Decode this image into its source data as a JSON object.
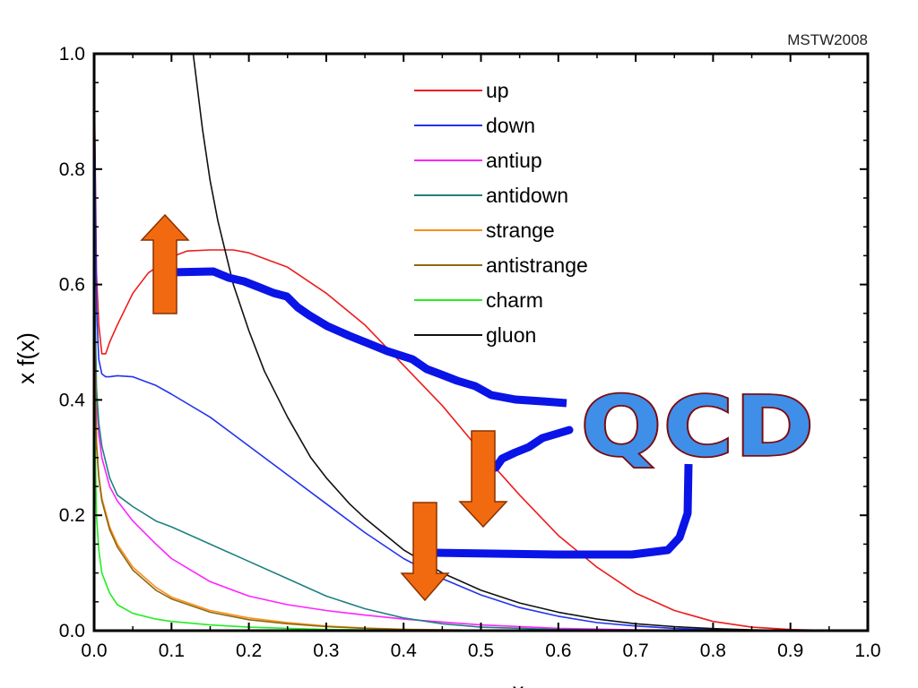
{
  "source_label": "MSTW2008",
  "overlay_text": "QCD",
  "colors": {
    "axis": "#000000",
    "annotation_line": "#0a14e6",
    "arrow_fill": "#f26a10",
    "arrow_stroke": "#8a3000",
    "qcd_fill": "#3f8fe8",
    "qcd_stroke": "#7a0c12"
  },
  "chart_data": {
    "type": "line",
    "xlabel": "x",
    "ylabel": "x f(x)",
    "xlim": [
      0.0,
      1.0
    ],
    "ylim": [
      0.0,
      1.0
    ],
    "xticks": [
      "0.0",
      "0.1",
      "0.2",
      "0.3",
      "0.4",
      "0.5",
      "0.6",
      "0.7",
      "0.8",
      "0.9",
      "1.0"
    ],
    "yticks": [
      "0.0",
      "0.2",
      "0.4",
      "0.6",
      "0.8",
      "1.0"
    ],
    "grid": false,
    "legend_position": "top-center",
    "series": [
      {
        "name": "up",
        "color": "#ee1c1c",
        "x": [
          0.0,
          0.003,
          0.006,
          0.01,
          0.015,
          0.02,
          0.03,
          0.05,
          0.07,
          0.1,
          0.12,
          0.15,
          0.18,
          0.2,
          0.25,
          0.3,
          0.35,
          0.4,
          0.45,
          0.5,
          0.55,
          0.6,
          0.65,
          0.7,
          0.75,
          0.8,
          0.85,
          0.9,
          0.95,
          1.0
        ],
        "y": [
          0.98,
          0.62,
          0.53,
          0.48,
          0.48,
          0.5,
          0.53,
          0.585,
          0.62,
          0.648,
          0.658,
          0.66,
          0.66,
          0.655,
          0.63,
          0.585,
          0.53,
          0.46,
          0.39,
          0.31,
          0.235,
          0.165,
          0.11,
          0.065,
          0.035,
          0.016,
          0.006,
          0.002,
          0.0005,
          0.0
        ]
      },
      {
        "name": "down",
        "color": "#2233ee",
        "x": [
          0.0,
          0.003,
          0.006,
          0.01,
          0.015,
          0.02,
          0.03,
          0.05,
          0.08,
          0.1,
          0.15,
          0.2,
          0.25,
          0.3,
          0.35,
          0.4,
          0.45,
          0.5,
          0.55,
          0.6,
          0.65,
          0.7,
          0.75,
          0.8,
          0.85,
          0.9,
          1.0
        ],
        "y": [
          0.98,
          0.56,
          0.47,
          0.445,
          0.44,
          0.44,
          0.442,
          0.44,
          0.425,
          0.41,
          0.37,
          0.32,
          0.27,
          0.22,
          0.17,
          0.125,
          0.09,
          0.062,
          0.04,
          0.025,
          0.014,
          0.008,
          0.004,
          0.002,
          0.001,
          0.0003,
          0.0
        ]
      },
      {
        "name": "antiup",
        "color": "#ff22ff",
        "x": [
          0.0,
          0.003,
          0.006,
          0.01,
          0.02,
          0.03,
          0.05,
          0.08,
          0.1,
          0.15,
          0.2,
          0.25,
          0.3,
          0.35,
          0.4,
          0.5,
          0.6,
          0.7,
          0.8,
          1.0
        ],
        "y": [
          0.62,
          0.4,
          0.34,
          0.3,
          0.25,
          0.225,
          0.19,
          0.15,
          0.125,
          0.085,
          0.06,
          0.045,
          0.035,
          0.027,
          0.02,
          0.01,
          0.004,
          0.0015,
          0.0005,
          0.0
        ]
      },
      {
        "name": "antidown",
        "color": "#208080",
        "x": [
          0.0,
          0.003,
          0.006,
          0.01,
          0.02,
          0.03,
          0.05,
          0.08,
          0.1,
          0.15,
          0.2,
          0.25,
          0.3,
          0.35,
          0.4,
          0.45,
          0.5,
          0.6,
          0.7,
          0.8,
          1.0
        ],
        "y": [
          0.66,
          0.42,
          0.36,
          0.32,
          0.265,
          0.235,
          0.215,
          0.19,
          0.18,
          0.15,
          0.12,
          0.09,
          0.06,
          0.038,
          0.022,
          0.012,
          0.006,
          0.002,
          0.0007,
          0.0002,
          0.0
        ]
      },
      {
        "name": "strange",
        "color": "#ff8c1a",
        "x": [
          0.0,
          0.003,
          0.006,
          0.01,
          0.02,
          0.03,
          0.05,
          0.08,
          0.1,
          0.15,
          0.2,
          0.25,
          0.3,
          0.35,
          0.4,
          0.5,
          0.6,
          0.8,
          1.0
        ],
        "y": [
          0.58,
          0.33,
          0.27,
          0.23,
          0.18,
          0.15,
          0.11,
          0.075,
          0.058,
          0.035,
          0.022,
          0.014,
          0.008,
          0.0045,
          0.0025,
          0.0008,
          0.0002,
          0.0,
          0.0
        ]
      },
      {
        "name": "antistrange",
        "color": "#8b6b10",
        "x": [
          0.0,
          0.003,
          0.006,
          0.01,
          0.02,
          0.03,
          0.05,
          0.08,
          0.1,
          0.15,
          0.2,
          0.25,
          0.3,
          0.35,
          0.4,
          0.5,
          0.6,
          0.8,
          1.0
        ],
        "y": [
          0.57,
          0.32,
          0.265,
          0.225,
          0.175,
          0.145,
          0.105,
          0.07,
          0.055,
          0.032,
          0.019,
          0.012,
          0.007,
          0.004,
          0.002,
          0.0007,
          0.0002,
          0.0,
          0.0
        ]
      },
      {
        "name": "charm",
        "color": "#22ee22",
        "x": [
          0.0,
          0.003,
          0.006,
          0.01,
          0.02,
          0.03,
          0.05,
          0.08,
          0.1,
          0.15,
          0.2,
          0.25,
          0.3,
          0.4,
          0.5,
          0.7,
          1.0
        ],
        "y": [
          0.42,
          0.2,
          0.14,
          0.1,
          0.065,
          0.045,
          0.03,
          0.02,
          0.016,
          0.01,
          0.006,
          0.004,
          0.002,
          0.0008,
          0.0003,
          0.0,
          0.0
        ]
      },
      {
        "name": "gluon",
        "color": "#111111",
        "x": [
          0.128,
          0.14,
          0.15,
          0.16,
          0.18,
          0.2,
          0.22,
          0.25,
          0.28,
          0.3,
          0.33,
          0.35,
          0.4,
          0.45,
          0.5,
          0.55,
          0.6,
          0.65,
          0.7,
          0.75,
          0.8,
          0.85,
          0.9,
          1.0
        ],
        "y": [
          1.0,
          0.87,
          0.78,
          0.71,
          0.6,
          0.52,
          0.45,
          0.37,
          0.3,
          0.265,
          0.22,
          0.195,
          0.14,
          0.1,
          0.07,
          0.048,
          0.032,
          0.02,
          0.012,
          0.007,
          0.0035,
          0.0015,
          0.0005,
          0.0
        ]
      }
    ]
  }
}
